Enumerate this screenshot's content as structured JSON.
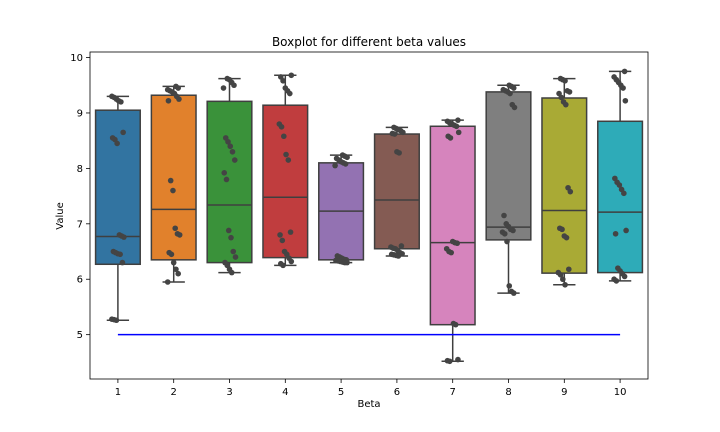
{
  "chart_data": {
    "type": "boxplot",
    "title": "Boxplot for different beta values",
    "xlabel": "Beta",
    "ylabel": "Value",
    "categories": [
      "1",
      "2",
      "3",
      "4",
      "5",
      "6",
      "7",
      "8",
      "9",
      "10"
    ],
    "ylim": [
      4.2,
      10.1
    ],
    "yticks": [
      5,
      6,
      7,
      8,
      9,
      10
    ],
    "grid": false,
    "boxes": [
      {
        "category": "1",
        "min": 5.26,
        "q1": 6.27,
        "median": 6.77,
        "q3": 9.05,
        "max": 9.3,
        "color": "#3274a1",
        "points": [
          9.3,
          9.28,
          9.25,
          9.22,
          9.2,
          8.65,
          8.55,
          8.52,
          8.45,
          6.8,
          6.78,
          6.76,
          6.5,
          6.48,
          6.46,
          6.45,
          6.3,
          5.28,
          5.27,
          5.26
        ]
      },
      {
        "category": "2",
        "min": 5.95,
        "q1": 6.35,
        "median": 7.26,
        "q3": 9.32,
        "max": 9.48,
        "color": "#e1812c",
        "points": [
          9.48,
          9.45,
          9.42,
          9.4,
          9.38,
          9.35,
          9.3,
          9.25,
          9.22,
          7.78,
          7.6,
          6.92,
          6.82,
          6.8,
          6.48,
          6.45,
          6.3,
          6.18,
          6.1,
          5.95
        ]
      },
      {
        "category": "3",
        "min": 6.12,
        "q1": 6.3,
        "median": 7.34,
        "q3": 9.21,
        "max": 9.62,
        "color": "#3a923a",
        "points": [
          9.62,
          9.6,
          9.55,
          9.5,
          9.45,
          8.55,
          8.48,
          8.4,
          8.3,
          8.15,
          7.92,
          7.8,
          6.88,
          6.75,
          6.5,
          6.4,
          6.3,
          6.25,
          6.18,
          6.12
        ]
      },
      {
        "category": "4",
        "min": 6.25,
        "q1": 6.39,
        "median": 7.48,
        "q3": 9.14,
        "max": 9.68,
        "color": "#c03d3e",
        "points": [
          9.68,
          9.65,
          9.58,
          9.45,
          9.4,
          9.35,
          8.8,
          8.75,
          8.58,
          8.25,
          8.15,
          6.85,
          6.8,
          6.7,
          6.5,
          6.45,
          6.38,
          6.32,
          6.28,
          6.25
        ]
      },
      {
        "category": "5",
        "min": 6.3,
        "q1": 6.35,
        "median": 7.23,
        "q3": 8.1,
        "max": 8.24,
        "color": "#9372b2",
        "points": [
          8.24,
          8.22,
          8.2,
          8.18,
          8.15,
          8.12,
          8.1,
          8.08,
          8.05,
          6.42,
          6.4,
          6.38,
          6.36,
          6.35,
          6.34,
          6.33,
          6.32,
          6.31,
          6.3,
          6.3
        ]
      },
      {
        "category": "6",
        "min": 6.42,
        "q1": 6.55,
        "median": 7.43,
        "q3": 8.62,
        "max": 8.74,
        "color": "#845b53",
        "points": [
          8.74,
          8.72,
          8.7,
          8.68,
          8.65,
          8.63,
          8.62,
          8.3,
          8.28,
          6.6,
          6.58,
          6.56,
          6.55,
          6.52,
          6.48,
          6.46,
          6.45,
          6.44,
          6.43,
          6.42
        ]
      },
      {
        "category": "7",
        "min": 4.52,
        "q1": 5.18,
        "median": 6.66,
        "q3": 8.76,
        "max": 8.87,
        "color": "#d684bd",
        "points": [
          8.87,
          8.85,
          8.82,
          8.8,
          8.78,
          8.76,
          8.65,
          8.58,
          8.55,
          6.68,
          6.66,
          6.65,
          6.55,
          6.5,
          6.48,
          5.2,
          5.18,
          4.55,
          4.53,
          4.52
        ]
      },
      {
        "category": "8",
        "min": 5.75,
        "q1": 6.71,
        "median": 6.94,
        "q3": 9.38,
        "max": 9.5,
        "color": "#7f7f7f",
        "points": [
          9.5,
          9.48,
          9.45,
          9.42,
          9.4,
          9.38,
          9.35,
          9.15,
          9.1,
          7.15,
          7.0,
          6.95,
          6.9,
          6.88,
          6.85,
          6.82,
          6.68,
          5.88,
          5.78,
          5.75
        ]
      },
      {
        "category": "9",
        "min": 5.9,
        "q1": 6.11,
        "median": 7.24,
        "q3": 9.27,
        "max": 9.62,
        "color": "#a9aa35",
        "points": [
          9.62,
          9.6,
          9.58,
          9.4,
          9.38,
          9.35,
          9.28,
          9.2,
          9.15,
          7.65,
          7.58,
          6.92,
          6.9,
          6.78,
          6.75,
          6.18,
          6.12,
          6.08,
          6.0,
          5.9
        ]
      },
      {
        "category": "10",
        "min": 5.97,
        "q1": 6.12,
        "median": 7.21,
        "q3": 8.85,
        "max": 9.75,
        "color": "#2eabb8",
        "points": [
          9.75,
          9.65,
          9.6,
          9.55,
          9.5,
          9.45,
          9.22,
          7.82,
          7.75,
          7.7,
          7.62,
          7.55,
          6.88,
          6.82,
          6.2,
          6.15,
          6.1,
          6.05,
          6.0,
          5.97
        ]
      }
    ],
    "reference_line": {
      "y": 5.0,
      "from_category": "1",
      "to_category": "10",
      "color": "#0000ff"
    },
    "point_color": "#444444"
  }
}
